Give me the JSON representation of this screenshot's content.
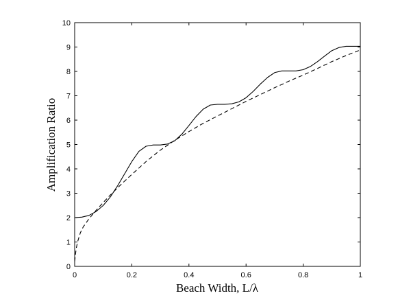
{
  "chart_data": {
    "type": "line",
    "xlabel": "Beach Width, L/λ",
    "ylabel": "Amplification Ratio",
    "xlim": [
      0,
      1
    ],
    "ylim": [
      0,
      10
    ],
    "xticks": [
      "0",
      "0.2",
      "0.4",
      "0.6",
      "0.8",
      "1"
    ],
    "yticks": [
      "0",
      "1",
      "2",
      "3",
      "4",
      "5",
      "6",
      "7",
      "8",
      "9",
      "10"
    ],
    "grid": false,
    "series": [
      {
        "style": "solid",
        "x": [
          0,
          0.025,
          0.05,
          0.075,
          0.1,
          0.125,
          0.15,
          0.175,
          0.2,
          0.225,
          0.25,
          0.275,
          0.3,
          0.325,
          0.35,
          0.375,
          0.4,
          0.425,
          0.45,
          0.475,
          0.5,
          0.525,
          0.55,
          0.575,
          0.6,
          0.625,
          0.65,
          0.675,
          0.7,
          0.725,
          0.75,
          0.775,
          0.8,
          0.825,
          0.85,
          0.875,
          0.9,
          0.925,
          0.95,
          0.975,
          1
        ],
        "y": [
          2.0,
          2.02,
          2.09,
          2.25,
          2.5,
          2.85,
          3.3,
          3.8,
          4.3,
          4.72,
          4.93,
          4.98,
          4.98,
          5.02,
          5.15,
          5.42,
          5.78,
          6.15,
          6.45,
          6.62,
          6.65,
          6.65,
          6.67,
          6.75,
          6.92,
          7.18,
          7.48,
          7.75,
          7.95,
          8.02,
          8.02,
          8.02,
          8.07,
          8.2,
          8.4,
          8.63,
          8.85,
          8.98,
          9.03,
          9.03,
          9.03
        ]
      },
      {
        "style": "dashed",
        "x": [
          0,
          0.005,
          0.01,
          0.02,
          0.03,
          0.05,
          0.075,
          0.1,
          0.125,
          0.15,
          0.175,
          0.2,
          0.25,
          0.3,
          0.35,
          0.4,
          0.45,
          0.5,
          0.55,
          0.6,
          0.65,
          0.7,
          0.75,
          0.8,
          0.85,
          0.9,
          0.95,
          1
        ],
        "y": [
          0.2,
          0.7,
          1.0,
          1.38,
          1.62,
          1.95,
          2.3,
          2.62,
          2.93,
          3.22,
          3.5,
          3.77,
          4.3,
          4.77,
          5.17,
          5.53,
          5.87,
          6.17,
          6.47,
          6.77,
          7.05,
          7.33,
          7.6,
          7.85,
          8.12,
          8.4,
          8.65,
          8.88
        ]
      }
    ]
  }
}
